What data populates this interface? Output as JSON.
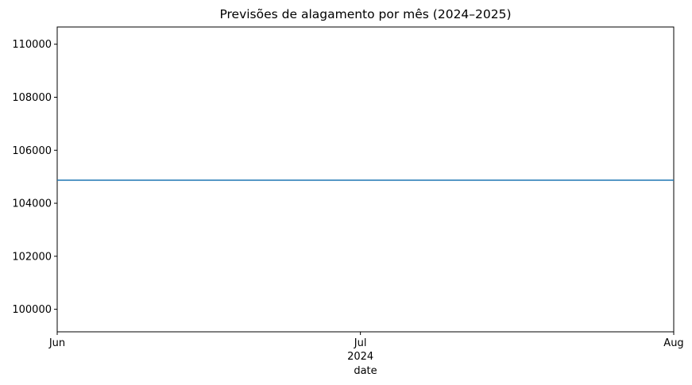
{
  "chart_data": {
    "type": "line",
    "title": "Previsões de alagamento por mês (2024–2025)",
    "xlabel": "date",
    "ylabel": "",
    "x_axis": {
      "type": "date",
      "range": [
        "2024-06-01",
        "2024-08-01"
      ],
      "ticks": [
        {
          "value": "2024-06-01",
          "label": "Jun"
        },
        {
          "value": "2024-07-01",
          "label": "Jul"
        },
        {
          "value": "2024-08-01",
          "label": "Aug"
        }
      ],
      "secondary_label": {
        "value": "2024-07-01",
        "label": "2024"
      }
    },
    "y_axis": {
      "range": [
        99150,
        110650
      ],
      "ticks": [
        100000,
        102000,
        104000,
        106000,
        108000,
        110000
      ],
      "tick_labels": [
        "100000",
        "102000",
        "104000",
        "106000",
        "108000",
        "110000"
      ]
    },
    "series": [
      {
        "color": "#1f77b4",
        "x": [
          "2024-06-01",
          "2024-07-01",
          "2024-08-01"
        ],
        "values": [
          104870,
          104870,
          104870
        ]
      }
    ],
    "grid": false,
    "legend": "none"
  }
}
